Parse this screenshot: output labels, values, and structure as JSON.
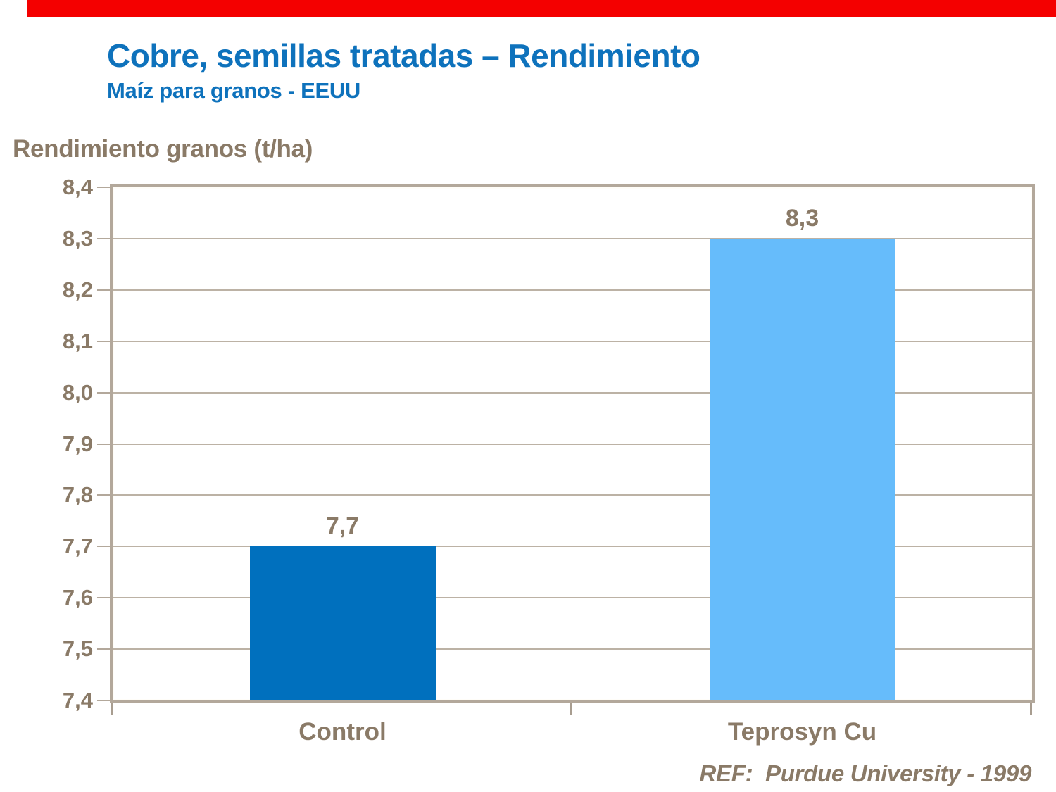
{
  "accent_bar": {
    "color": "#f40000"
  },
  "header": {
    "title": "Cobre, semillas tratadas – Rendimiento",
    "subtitle": "Maíz para granos - EEUU",
    "text_color": "#0e72bc"
  },
  "footer": {
    "ref": "REF:  Purdue University - 1999"
  },
  "colors": {
    "brown_text": "#8a7a67",
    "axis_frame": "#b3a89b",
    "gridline": "#bcb2a5",
    "bar_control": "#0070be",
    "bar_teprosyn": "#66bcfb"
  },
  "chart_data": {
    "type": "bar",
    "title": "Cobre, semillas tratadas – Rendimiento",
    "subtitle": "Maíz para granos - EEUU",
    "ylabel": "Rendimiento granos (t/ha)",
    "xlabel": "",
    "categories": [
      "Control",
      "Teprosyn Cu"
    ],
    "values": [
      7.7,
      8.3
    ],
    "value_labels": [
      "7,7",
      "8,3"
    ],
    "bar_colors": [
      "#0070be",
      "#66bcfb"
    ],
    "ylim": [
      7.4,
      8.4
    ],
    "ytick_step": 0.1,
    "ytick_labels": [
      "8,4",
      "8,3",
      "8,2",
      "8,1",
      "8,0",
      "7,9",
      "7,8",
      "7,7",
      "7,6",
      "7,5",
      "7,4"
    ],
    "grid": true,
    "legend": false,
    "annotation": "REF:  Purdue University - 1999"
  }
}
